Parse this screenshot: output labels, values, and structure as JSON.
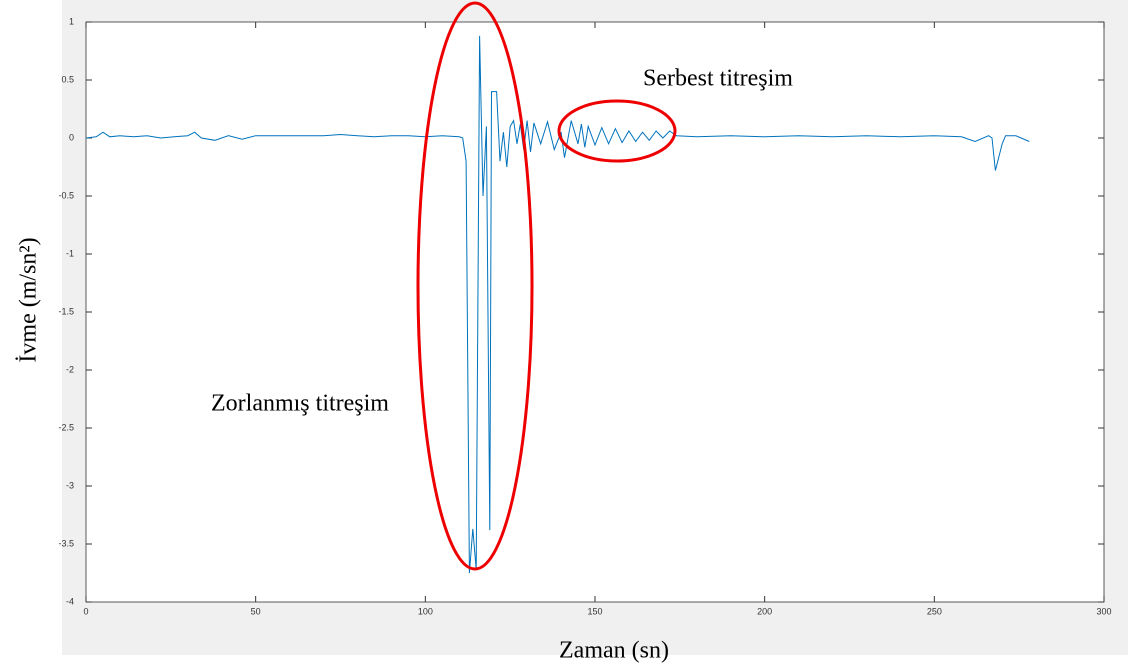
{
  "chart_data": {
    "type": "line",
    "x_label": "Zaman (sn)",
    "y_label": "İvme (m/sn²)",
    "annotations": [
      "Zorlanmış titreşim",
      "Serbest titreşim"
    ],
    "xlim": [
      0,
      300
    ],
    "ylim": [
      -4,
      1
    ],
    "xticks": [
      0,
      50,
      100,
      150,
      200,
      250,
      300
    ],
    "yticks": [
      1,
      0.5,
      0,
      -0.5,
      -1,
      -1.5,
      -2,
      -2.5,
      -3,
      -3.5,
      -4
    ],
    "grid": false,
    "series": [
      {
        "name": "İvme",
        "color": "#0072bd",
        "x": [
          0,
          3,
          5,
          7,
          10,
          14,
          18,
          22,
          26,
          30,
          32,
          34,
          38,
          42,
          46,
          50,
          55,
          60,
          65,
          70,
          75,
          80,
          85,
          90,
          95,
          100,
          105,
          110,
          111,
          112,
          113,
          114,
          115,
          116,
          117,
          118,
          119,
          119.5,
          121,
          122,
          123,
          124,
          125,
          126,
          127,
          128,
          129,
          130,
          131,
          132,
          134,
          136,
          138,
          140,
          141,
          143,
          145,
          146,
          147,
          148,
          150,
          152,
          154,
          156,
          158,
          160,
          162,
          164,
          166,
          168,
          170,
          172,
          174,
          180,
          190,
          200,
          210,
          220,
          230,
          240,
          250,
          258,
          262,
          266,
          267,
          268,
          270,
          271,
          274,
          278
        ],
        "values": [
          0,
          0.01,
          0.05,
          0.01,
          0.02,
          0.01,
          0.02,
          0,
          0.01,
          0.02,
          0.05,
          0,
          -0.02,
          0.02,
          -0.01,
          0.02,
          0.02,
          0.02,
          0.02,
          0.02,
          0.03,
          0.02,
          0.01,
          0.02,
          0.02,
          0.01,
          0.02,
          0.01,
          0,
          -0.2,
          -3.75,
          -3.37,
          -3.72,
          0.88,
          -0.5,
          0.1,
          -3.38,
          0.4,
          0.4,
          -0.2,
          0.05,
          -0.25,
          0.1,
          0.15,
          -0.05,
          0.12,
          -0.1,
          0.15,
          -0.12,
          0.13,
          -0.05,
          0.14,
          -0.1,
          0.05,
          -0.17,
          0.15,
          -0.05,
          0.12,
          -0.08,
          0.1,
          -0.06,
          0.09,
          -0.05,
          0.08,
          -0.04,
          0.06,
          -0.03,
          0.05,
          -0.02,
          0.06,
          0,
          0.06,
          0.02,
          0.01,
          0.02,
          0.01,
          0.02,
          0.01,
          0.02,
          0.01,
          0.02,
          0.01,
          -0.03,
          0.02,
          0,
          -0.28,
          -0.05,
          0.02,
          0.02,
          -0.03
        ]
      }
    ]
  }
}
